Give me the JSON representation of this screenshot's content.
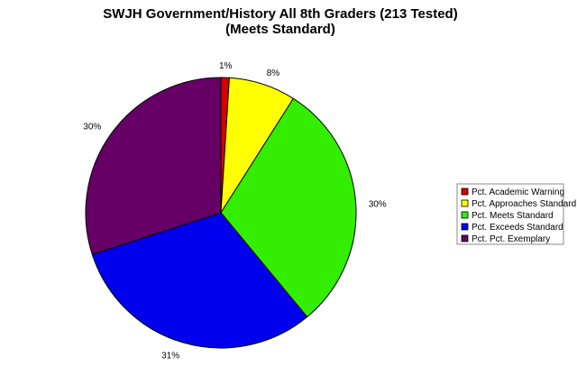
{
  "chart_data": {
    "type": "pie",
    "title": "SWJH Government/History All 8th Graders (213 Tested)",
    "subtitle": "(Meets Standard)",
    "slices": [
      {
        "label": "Pct. Academic Warning",
        "value": 1,
        "display": "1%",
        "color": "#d40000"
      },
      {
        "label": "Pct. Approaches Standard",
        "value": 8,
        "display": "8%",
        "color": "#ffff00"
      },
      {
        "label": "Pct. Meets Standard",
        "value": 30,
        "display": "30%",
        "color": "#33ee00"
      },
      {
        "label": "Pct. Exceeds Standard",
        "value": 31,
        "display": "31%",
        "color": "#0000ee"
      },
      {
        "label": "Pct. Pct. Exemplary",
        "value": 30,
        "display": "30%",
        "color": "#660066"
      }
    ],
    "legend_position": "right"
  }
}
